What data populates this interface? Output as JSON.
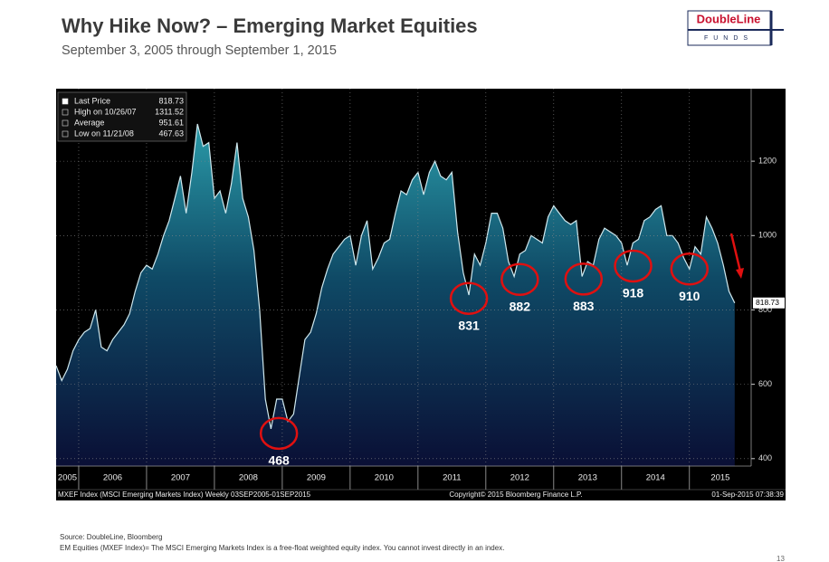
{
  "header": {
    "title": "Why Hike Now? – Emerging Market Equities",
    "subtitle": "September 3, 2005 through September 1, 2015",
    "logo": "DoubleLine",
    "logo_sub": "FUNDS"
  },
  "chart_data": {
    "type": "area",
    "x": [
      2005.667,
      2005.75,
      2005.833,
      2005.917,
      2006,
      2006.083,
      2006.167,
      2006.25,
      2006.333,
      2006.417,
      2006.5,
      2006.583,
      2006.667,
      2006.75,
      2006.833,
      2006.917,
      2007,
      2007.083,
      2007.167,
      2007.25,
      2007.333,
      2007.417,
      2007.5,
      2007.583,
      2007.667,
      2007.75,
      2007.833,
      2007.917,
      2008,
      2008.083,
      2008.167,
      2008.25,
      2008.333,
      2008.417,
      2008.5,
      2008.583,
      2008.667,
      2008.75,
      2008.833,
      2008.917,
      2009,
      2009.083,
      2009.167,
      2009.25,
      2009.333,
      2009.417,
      2009.5,
      2009.583,
      2009.667,
      2009.75,
      2009.833,
      2009.917,
      2010,
      2010.083,
      2010.167,
      2010.25,
      2010.333,
      2010.417,
      2010.5,
      2010.583,
      2010.667,
      2010.75,
      2010.833,
      2010.917,
      2011,
      2011.083,
      2011.167,
      2011.25,
      2011.333,
      2011.417,
      2011.5,
      2011.583,
      2011.667,
      2011.75,
      2011.833,
      2011.917,
      2012,
      2012.083,
      2012.167,
      2012.25,
      2012.333,
      2012.417,
      2012.5,
      2012.583,
      2012.667,
      2012.75,
      2012.833,
      2012.917,
      2013,
      2013.083,
      2013.167,
      2013.25,
      2013.333,
      2013.417,
      2013.5,
      2013.583,
      2013.667,
      2013.75,
      2013.833,
      2013.917,
      2014,
      2014.083,
      2014.167,
      2014.25,
      2014.333,
      2014.417,
      2014.5,
      2014.583,
      2014.667,
      2014.75,
      2014.833,
      2014.917,
      2015,
      2015.083,
      2015.167,
      2015.25,
      2015.333,
      2015.417,
      2015.5,
      2015.583,
      2015.667
    ],
    "values": [
      650,
      610,
      640,
      690,
      720,
      740,
      750,
      800,
      700,
      690,
      720,
      740,
      760,
      790,
      850,
      900,
      920,
      910,
      950,
      1000,
      1040,
      1100,
      1160,
      1060,
      1170,
      1300,
      1240,
      1250,
      1100,
      1120,
      1060,
      1140,
      1250,
      1100,
      1050,
      960,
      800,
      560,
      480,
      560,
      560,
      500,
      520,
      620,
      720,
      740,
      790,
      860,
      910,
      950,
      970,
      990,
      1000,
      920,
      1000,
      1040,
      910,
      940,
      980,
      990,
      1060,
      1120,
      1110,
      1150,
      1170,
      1110,
      1170,
      1200,
      1160,
      1150,
      1170,
      1010,
      900,
      840,
      950,
      920,
      980,
      1060,
      1060,
      1020,
      930,
      890,
      950,
      960,
      1000,
      990,
      980,
      1050,
      1080,
      1060,
      1040,
      1030,
      1040,
      890,
      930,
      920,
      990,
      1020,
      1010,
      1000,
      980,
      920,
      980,
      990,
      1040,
      1050,
      1070,
      1080,
      1000,
      1000,
      980,
      940,
      910,
      970,
      950,
      1050,
      1020,
      980,
      920,
      850,
      818.73
    ],
    "color": "#1f8a9a",
    "xlim": [
      2005.667,
      2015.91
    ],
    "xticks": [
      2005,
      2006,
      2007,
      2008,
      2009,
      2010,
      2011,
      2012,
      2013,
      2014,
      2015
    ],
    "ylim": [
      380,
      1395
    ],
    "yticks": [
      400,
      600,
      800,
      1000,
      1200
    ],
    "grid": true,
    "stats": [
      {
        "label": "Last Price",
        "value": 818.73
      },
      {
        "label": "High on 10/26/07",
        "value": 1311.52
      },
      {
        "label": "Average",
        "value": 951.61
      },
      {
        "label": "Low on 11/21/08",
        "value": 467.63
      }
    ],
    "annotations": [
      {
        "x": 2008.95,
        "value": 468
      },
      {
        "x": 2011.75,
        "value": 831
      },
      {
        "x": 2012.5,
        "value": 882
      },
      {
        "x": 2013.44,
        "value": 883
      },
      {
        "x": 2014.17,
        "value": 918
      },
      {
        "x": 2015.0,
        "value": 910
      }
    ],
    "footer_left": "MXEF Index (MSCI Emerging Markets Index)  Weekly 03SEP2005-01SEP2015",
    "footer_mid": "Copyright© 2015 Bloomberg Finance L.P.",
    "footer_right": "01-Sep-2015 07:38:39"
  },
  "notes": {
    "source": "Source: DoubleLine, Bloomberg",
    "disclaimer": "EM Equities (MXEF Index)= The MSCI Emerging Markets Index is a free-float weighted equity index. You cannot invest directly in  an  index.",
    "page": "13"
  }
}
